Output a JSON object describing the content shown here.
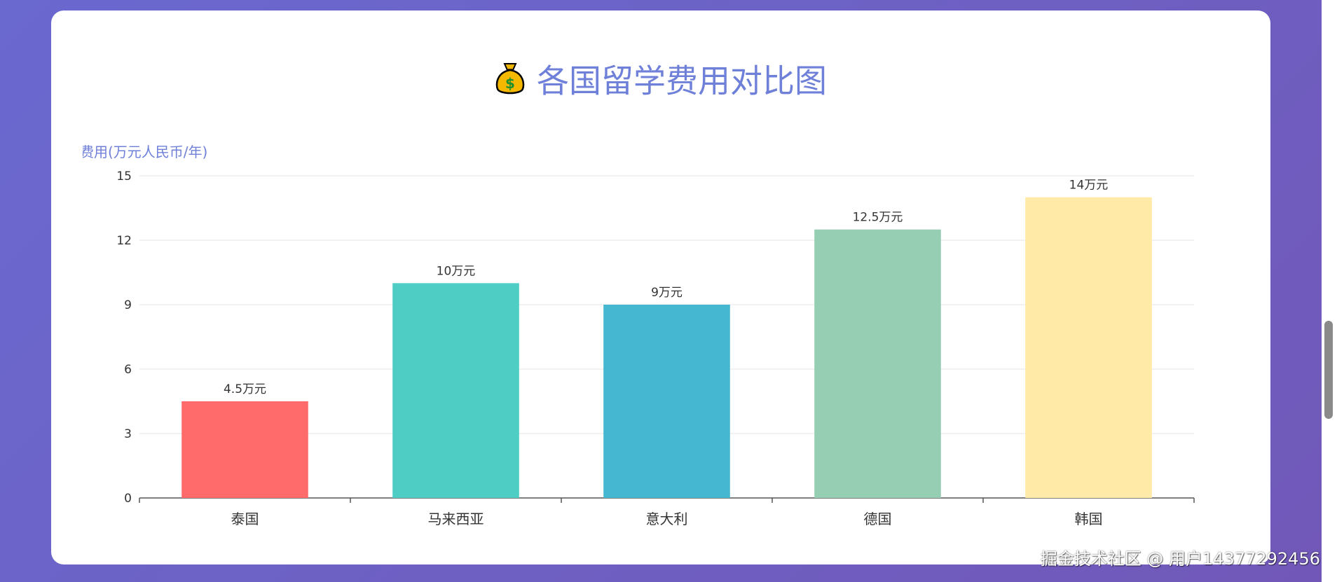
{
  "title": "各国留学费用对比图",
  "title_icon": "money-bag-icon",
  "watermark": "掘金技术社区 @ 用户14377292456",
  "colors": {
    "title": "#6f80d9",
    "ylabel": "#6f80d9",
    "axis_text": "#333333",
    "grid": "#e6e6e6",
    "axis_line": "#555555"
  },
  "chart_data": {
    "type": "bar",
    "categories": [
      "泰国",
      "马来西亚",
      "意大利",
      "德国",
      "韩国"
    ],
    "values": [
      4.5,
      10,
      9,
      12.5,
      14
    ],
    "data_labels": [
      "4.5万元",
      "10万元",
      "9万元",
      "12.5万元",
      "14万元"
    ],
    "bar_colors": [
      "#ff6b6b",
      "#4ecdc4",
      "#45b7d1",
      "#96ceb4",
      "#ffeaa7"
    ],
    "ylabel": "费用(万元人民币/年)",
    "xlabel": "",
    "yticks": [
      0,
      3,
      6,
      9,
      12,
      15
    ],
    "ylim": [
      0,
      15
    ],
    "grid": true
  }
}
